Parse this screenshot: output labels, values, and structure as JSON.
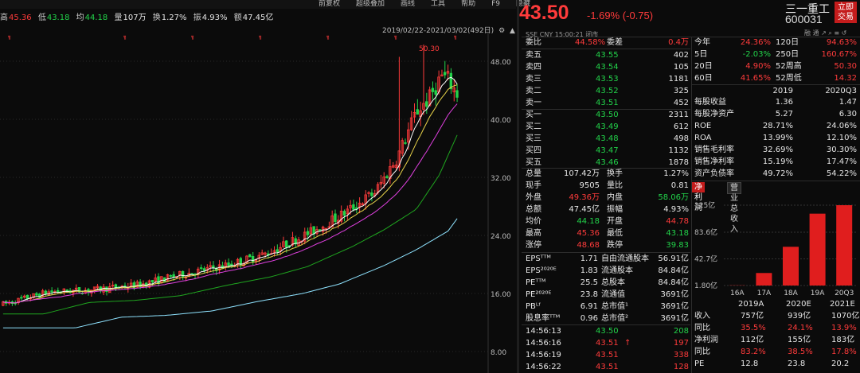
{
  "menu": [
    "前复权",
    "超级叠加",
    "画线",
    "工具",
    "帮助",
    "F9",
    "隐藏"
  ],
  "stats": {
    "high_label": "高",
    "high": "45.36",
    "low_label": "低",
    "low": "43.18",
    "avg_label": "均",
    "avg": "44.18",
    "vol_label": "量",
    "vol": "107万",
    "turn_label": "换",
    "turn": "1.27%",
    "amp_label": "振",
    "amp": "4.93%",
    "amt_label": "额",
    "amt": "47.45亿"
  },
  "daterange": "2019/02/22-2021/03/02(492日)",
  "price_axis": [
    "48.00",
    "40.00",
    "32.00",
    "24.00",
    "16.00",
    "8.00"
  ],
  "peak_label": "50.30",
  "price": "43.50",
  "change": "-1.69% (-0.75)",
  "stock_name": "三一重工",
  "stock_code": "600031",
  "trade_btn": [
    "立即",
    "交易"
  ],
  "subinfo": "SSE  CNY  15:00:21  闭市",
  "subicons": "融 通 ↗ ⌕ ≡ ↺",
  "book_header": {
    "l1": "委比",
    "v1": "44.58%",
    "l2": "委差",
    "v2": "0.4万"
  },
  "asks": [
    {
      "label": "卖五",
      "price": "43.55",
      "vol": "402"
    },
    {
      "label": "卖四",
      "price": "43.54",
      "vol": "105"
    },
    {
      "label": "卖三",
      "price": "43.53",
      "vol": "1181"
    },
    {
      "label": "卖二",
      "price": "43.52",
      "vol": "325"
    },
    {
      "label": "卖一",
      "price": "43.51",
      "vol": "452"
    }
  ],
  "bids": [
    {
      "label": "买一",
      "price": "43.50",
      "vol": "2311"
    },
    {
      "label": "买二",
      "price": "43.49",
      "vol": "612"
    },
    {
      "label": "买三",
      "price": "43.48",
      "vol": "498"
    },
    {
      "label": "买四",
      "price": "43.47",
      "vol": "1132"
    },
    {
      "label": "买五",
      "price": "43.46",
      "vol": "1878"
    }
  ],
  "quote": [
    [
      "总量",
      "107.42万",
      "换手",
      "1.27%"
    ],
    [
      "现手",
      "9505",
      "量比",
      "0.81"
    ],
    [
      "外盘",
      "49.36万",
      "内盘",
      "58.06万"
    ],
    [
      "总额",
      "47.45亿",
      "振幅",
      "4.93%"
    ],
    [
      "均价",
      "44.18",
      "开盘",
      "44.78"
    ],
    [
      "最高",
      "45.36",
      "最低",
      "43.18"
    ],
    [
      "涨停",
      "48.68",
      "跌停",
      "39.83"
    ]
  ],
  "fund": [
    [
      "EPSᵀᵀᴹ",
      "1.71",
      "自由流通股本",
      "56.91亿"
    ],
    [
      "EPS²⁰²⁰ᴱ",
      "1.83",
      "流通股本",
      "84.84亿"
    ],
    [
      "PEᵀᵀᴹ",
      "25.5",
      "总股本",
      "84.84亿"
    ],
    [
      "PE²⁰²⁰ᴱ",
      "23.8",
      "流通值",
      "3691亿"
    ],
    [
      "PBᴸᶠ",
      "6.91",
      "总市值¹",
      "3691亿"
    ],
    [
      "股息率ᵀᵀᴹ",
      "0.96",
      "总市值²",
      "3691亿"
    ]
  ],
  "ticks": [
    {
      "t": "14:56:13",
      "p": "43.50",
      "v": "208",
      "arrow": ""
    },
    {
      "t": "14:56:16",
      "p": "43.51",
      "v": "197",
      "arrow": "↑"
    },
    {
      "t": "14:56:19",
      "p": "43.51",
      "v": "338",
      "arrow": ""
    },
    {
      "t": "14:56:22",
      "p": "43.51",
      "v": "128",
      "arrow": ""
    }
  ],
  "perf": [
    [
      "今年",
      "24.36%",
      "120日",
      "94.63%"
    ],
    [
      "5日",
      "-2.03%",
      "250日",
      "160.67%"
    ],
    [
      "20日",
      "4.90%",
      "52周高",
      "50.30"
    ],
    [
      "60日",
      "41.65%",
      "52周低",
      "14.32"
    ]
  ],
  "fin_header": [
    "",
    "2019",
    "2020Q3"
  ],
  "fin": [
    [
      "每股收益",
      "1.36",
      "1.47"
    ],
    [
      "每股净资产",
      "5.27",
      "6.30"
    ],
    [
      "ROE",
      "28.71%",
      "24.06%"
    ],
    [
      "ROA",
      "13.99%",
      "12.10%"
    ],
    [
      "销售毛利率",
      "32.69%",
      "30.30%"
    ],
    [
      "销售净利率",
      "15.19%",
      "17.47%"
    ],
    [
      "资产负债率",
      "49.72%",
      "54.22%"
    ]
  ],
  "tabs": [
    "净利润",
    "营业总收入"
  ],
  "bar_axis": [
    "125亿",
    "83.6亿",
    "42.7亿",
    "1.80亿"
  ],
  "chart_data": {
    "type": "bar",
    "categories": [
      "16A",
      "17A",
      "18A",
      "19A",
      "20Q3"
    ],
    "values": [
      2.1,
      21,
      61.2,
      112,
      125
    ],
    "ylim": [
      1.8,
      125
    ],
    "ylabel": ""
  },
  "est_header": [
    "",
    "2019A",
    "2020E",
    "2021E"
  ],
  "est": [
    [
      "收入",
      "757亿",
      "939亿",
      "1070亿"
    ],
    [
      "同比",
      "35.5%",
      "24.1%",
      "13.9%"
    ],
    [
      "净利润",
      "112亿",
      "155亿",
      "183亿"
    ],
    [
      "同比",
      "83.2%",
      "38.5%",
      "17.8%"
    ],
    [
      "PE",
      "12.8",
      "23.8",
      "20.2"
    ]
  ],
  "colors": {
    "up": "#ff3b3b",
    "down": "#22d34a",
    "ma5": "#ffffff",
    "ma10": "#e8d34a",
    "ma20": "#e040e0",
    "ma60": "#1fa51f",
    "ma120": "#8fe3ff"
  }
}
